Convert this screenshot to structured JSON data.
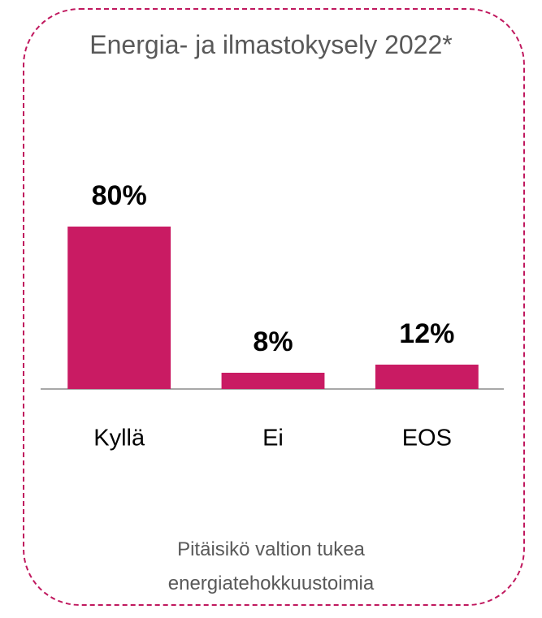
{
  "chart_data": {
    "type": "bar",
    "title": "Energia- ja ilmastokysely 2022*",
    "subtitle": "Pitäisikö valtion tukea energiatehokkuustoimia",
    "categories": [
      "Kyllä",
      "Ei",
      "EOS"
    ],
    "values": [
      80,
      8,
      12
    ],
    "value_labels": [
      "80%",
      "8%",
      "12%"
    ],
    "color": "#c91b63",
    "ylim": [
      0,
      100
    ]
  }
}
